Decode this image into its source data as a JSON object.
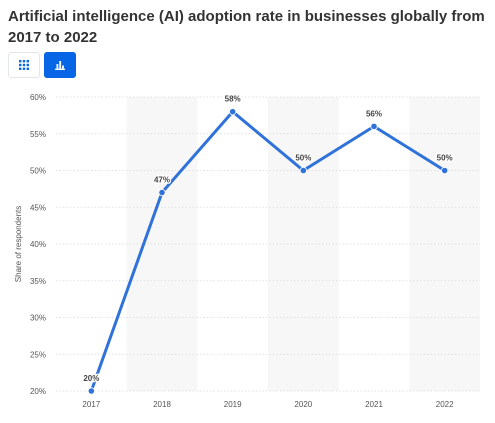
{
  "header": {
    "title": "Artificial intelligence (AI) adoption rate in businesses globally from 2017 to 2022"
  },
  "toolbar": {
    "table_icon": "grid-icon",
    "chart_icon": "bar-chart-icon",
    "active_color": "#0666e5"
  },
  "chart_data": {
    "type": "line",
    "categories": [
      "2017",
      "2018",
      "2019",
      "2020",
      "2021",
      "2022"
    ],
    "values": [
      20,
      47,
      58,
      50,
      56,
      50
    ],
    "data_labels": [
      "20%",
      "47%",
      "58%",
      "50%",
      "56%",
      "50%"
    ],
    "ylabel": "Share of respondents",
    "xlabel": "",
    "ylim": [
      20,
      60
    ],
    "yticks": [
      20,
      25,
      30,
      35,
      40,
      45,
      50,
      55,
      60
    ],
    "ytick_labels": [
      "20%",
      "25%",
      "30%",
      "35%",
      "40%",
      "45%",
      "50%",
      "55%",
      "60%"
    ],
    "grid": true,
    "line_color": "#2f72d9",
    "band_color": "#f7f7f7"
  }
}
